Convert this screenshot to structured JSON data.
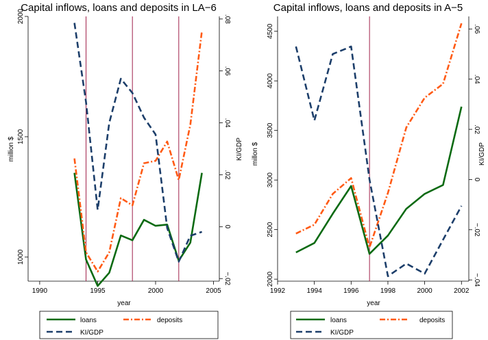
{
  "chart_data": [
    {
      "type": "line",
      "title": "Capital inflows, loans and deposits in LA−6",
      "xlabel": "year",
      "ylabel_left": "million $",
      "ylabel_right": "KI/GDP",
      "xlim": [
        1989,
        2005.5
      ],
      "ylim_left": [
        900,
        2000
      ],
      "ylim_right": [
        -0.021,
        0.081
      ],
      "x_ticks": [
        "1990",
        "1995",
        "2000",
        "2005"
      ],
      "y_ticks_left": [
        "1000",
        "1500",
        "2000"
      ],
      "y_ticks_right": [
        "−.02",
        "0",
        ".02",
        ".04",
        ".06",
        ".08"
      ],
      "vertical_lines": [
        1994,
        1998,
        2002
      ],
      "vertical_line_color": "#a0204a",
      "series": [
        {
          "name": "loans",
          "axis": "left",
          "color": "#0b6a12",
          "style": "solid",
          "x": [
            1993,
            1994,
            1995,
            1996,
            1997,
            1998,
            1999,
            2000,
            2001,
            2002,
            2003,
            2004
          ],
          "y": [
            1350,
            990,
            880,
            935,
            1090,
            1070,
            1155,
            1130,
            1135,
            985,
            1060,
            1350
          ]
        },
        {
          "name": "deposits",
          "axis": "left",
          "color": "#ff5a14",
          "style": "dashdot",
          "x": [
            1993,
            1994,
            1995,
            1996,
            1997,
            1998,
            1999,
            2000,
            2001,
            2002,
            2003,
            2004
          ],
          "y": [
            1410,
            1020,
            940,
            1020,
            1245,
            1215,
            1390,
            1400,
            1480,
            1320,
            1550,
            1940
          ]
        },
        {
          "name": "KI/GDP",
          "axis": "right",
          "color": "#1c3e6a",
          "style": "dashed",
          "x": [
            1993,
            1994,
            1995,
            1996,
            1997,
            1998,
            1999,
            2000,
            2001,
            2002,
            2003,
            2004
          ],
          "y": [
            0.0785,
            0.048,
            0.0065,
            0.04,
            0.057,
            0.0515,
            0.042,
            0.0355,
            -0.0005,
            -0.0135,
            -0.0035,
            -0.002
          ]
        }
      ],
      "legend": [
        "loans",
        "deposits",
        "KI/GDP"
      ],
      "legend_position": "bottom"
    },
    {
      "type": "line",
      "title": "Capital inflows, loans and deposits in A−5",
      "xlabel": "year",
      "ylabel_left": "millon $",
      "ylabel_right": "KI/GDP",
      "xlim": [
        1992,
        2002.4
      ],
      "ylim_left": [
        1980,
        4650
      ],
      "ylim_right": [
        -0.0405,
        0.065
      ],
      "x_ticks": [
        "1992",
        "1994",
        "1996",
        "1998",
        "2000",
        "2002"
      ],
      "y_ticks_left": [
        "2000",
        "2500",
        "3000",
        "3500",
        "4000",
        "4500"
      ],
      "y_ticks_right": [
        "−.04",
        "−.02",
        "0",
        ".02",
        ".04",
        ".06"
      ],
      "vertical_lines": [
        1997
      ],
      "vertical_line_color": "#a0204a",
      "series": [
        {
          "name": "loans",
          "axis": "left",
          "color": "#0b6a12",
          "style": "solid",
          "x": [
            1993,
            1994,
            1995,
            1996,
            1997,
            1998,
            1999,
            2000,
            2001,
            2002
          ],
          "y": [
            2270,
            2365,
            2660,
            2940,
            2255,
            2440,
            2710,
            2860,
            2950,
            3740
          ]
        },
        {
          "name": "deposits",
          "axis": "left",
          "color": "#ff5a14",
          "style": "dashdot",
          "x": [
            1993,
            1994,
            1995,
            1996,
            1997,
            1998,
            1999,
            2000,
            2001,
            2002
          ],
          "y": [
            2460,
            2550,
            2860,
            3020,
            2320,
            2870,
            3530,
            3830,
            3970,
            4580
          ]
        },
        {
          "name": "KI/GDP",
          "axis": "right",
          "color": "#1c3e6a",
          "style": "dashed",
          "x": [
            1993,
            1994,
            1995,
            1996,
            1997,
            1998,
            1999,
            2000,
            2001,
            2002
          ],
          "y": [
            0.053,
            0.0235,
            0.05,
            0.053,
            0.0,
            -0.0385,
            -0.0335,
            -0.0375,
            -0.024,
            -0.0105
          ]
        }
      ],
      "legend": [
        "loans",
        "deposits",
        "KI/GDP"
      ],
      "legend_position": "bottom"
    }
  ]
}
